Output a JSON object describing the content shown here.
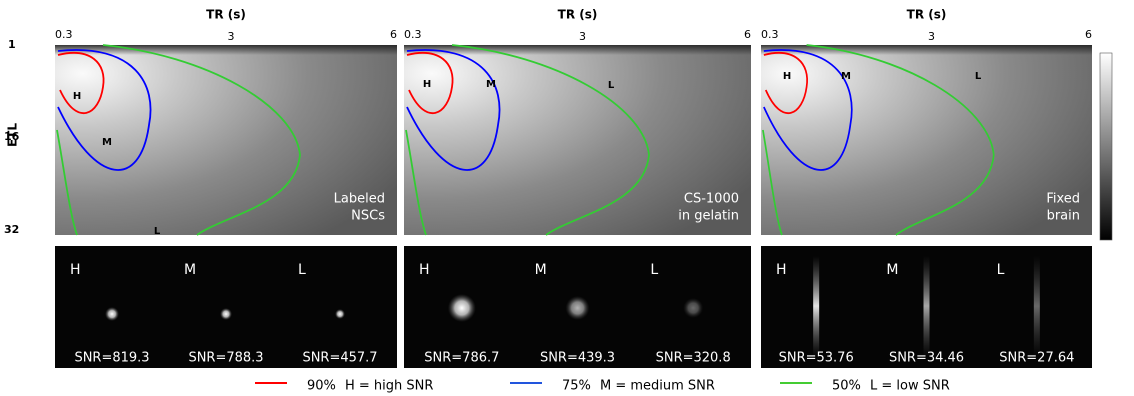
{
  "axes": {
    "x_title": "TR (s)",
    "y_title": "ETL",
    "x_ticks": [
      "0.3",
      "3",
      "6"
    ],
    "y_ticks": [
      "1",
      "16",
      "32"
    ]
  },
  "panels": [
    {
      "label": [
        "Labeled",
        "NSCs"
      ],
      "contour_labels": [
        "H",
        "M",
        "L"
      ],
      "image_labels": [
        "H",
        "M",
        "L"
      ],
      "snr": [
        "SNR=819.3",
        "SNR=788.3",
        "SNR=457.7"
      ]
    },
    {
      "label": [
        "CS-1000",
        "in gelatin"
      ],
      "contour_labels": [
        "H",
        "M",
        "L"
      ],
      "image_labels": [
        "H",
        "M",
        "L"
      ],
      "snr": [
        "SNR=786.7",
        "SNR=439.3",
        "SNR=320.8"
      ]
    },
    {
      "label": [
        "Fixed",
        "brain"
      ],
      "contour_labels": [
        "H",
        "M",
        "L"
      ],
      "image_labels": [
        "H",
        "M",
        "L"
      ],
      "snr": [
        "SNR=53.76",
        "SNR=34.46",
        "SNR=27.64"
      ]
    }
  ],
  "legend": [
    {
      "percent": "90%",
      "text": "H = high SNR"
    },
    {
      "percent": "75%",
      "text": "M = medium SNR"
    },
    {
      "percent": "50%",
      "text": "L = low SNR"
    }
  ]
}
